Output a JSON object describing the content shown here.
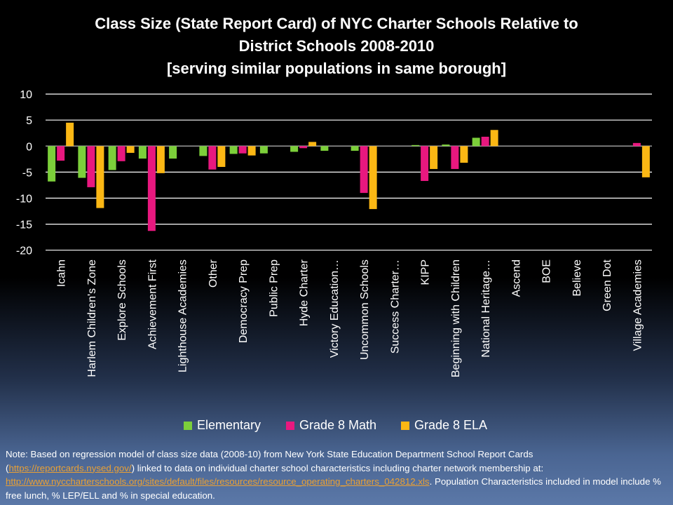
{
  "chart_data": {
    "type": "bar",
    "title": [
      "Class Size (State Report Card) of NYC Charter Schools Relative to",
      "District Schools 2008-2010",
      "[serving similar populations in same borough]"
    ],
    "xlabel": "",
    "ylabel": "",
    "ylim": [
      -20,
      10
    ],
    "yticks": [
      10,
      5,
      0,
      -5,
      -10,
      -15,
      -20
    ],
    "grid": true,
    "legend_position": "bottom",
    "categories": [
      "Icahn",
      "Harlem Children's Zone",
      "Explore Schools",
      "Achievement First",
      "Lighthouse Academies",
      "Other",
      "Democracy Prep",
      "Public Prep",
      "Hyde Charter",
      "Victory Education…",
      "Uncommon Schools",
      "Success Charter…",
      "KIPP",
      "Beginning with Children",
      "National Heritage…",
      "Ascend",
      "BOE",
      "Believe",
      "Green Dot",
      "Village Academies"
    ],
    "series": [
      {
        "name": "Elementary",
        "color": "#7ccf3a",
        "values": [
          -6.8,
          -6.1,
          -4.6,
          -2.4,
          -2.4,
          -1.9,
          -1.5,
          -1.4,
          -1.1,
          -0.9,
          -0.9,
          null,
          0.2,
          0.3,
          1.6,
          null,
          null,
          null,
          null,
          null
        ]
      },
      {
        "name": "Grade 8 Math",
        "color": "#e8187f",
        "values": [
          -2.8,
          -7.9,
          -2.9,
          -16.3,
          null,
          -4.5,
          -1.4,
          null,
          -0.4,
          null,
          -9.0,
          null,
          -6.7,
          -4.4,
          1.8,
          null,
          null,
          null,
          null,
          0.6
        ]
      },
      {
        "name": "Grade 8 ELA",
        "color": "#fbb714",
        "values": [
          4.5,
          -11.9,
          -1.3,
          -5.2,
          null,
          -4.0,
          -1.8,
          null,
          0.8,
          null,
          -12.1,
          null,
          -4.4,
          -3.2,
          3.1,
          null,
          null,
          null,
          null,
          -6.0
        ]
      }
    ]
  },
  "note": {
    "prefix": "Note: Based on regression model of class size data (2008-10) from New York State Education Department School Report Cards",
    "open_paren": "(",
    "link1": "https://reportcards.nysed.gov/",
    "mid": ") linked to data on individual charter school characteristics including charter network membership at:",
    "link2": "http://www.nyccharterschools.org/sites/default/files/resources/resource_operating_charters_042812.xls",
    "suffix": ". Population Characteristics included in model include % free lunch, % LEP/ELL and % in special education."
  }
}
